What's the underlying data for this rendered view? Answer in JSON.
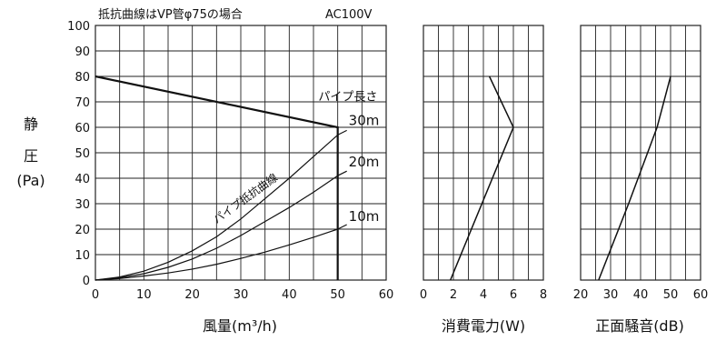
{
  "chart_data": [
    {
      "type": "line",
      "note_left": "抵抗曲線はVP管φ75の場合",
      "note_right": "AC100V",
      "ylabel_lines": [
        "静",
        "圧",
        "(Pa)"
      ],
      "xlabel": "風量(m³/h)",
      "xlim": [
        0,
        60
      ],
      "ylim": [
        0,
        100
      ],
      "xticks": [
        0,
        10,
        20,
        30,
        40,
        50,
        60
      ],
      "yticks": [
        0,
        10,
        20,
        30,
        40,
        50,
        60,
        70,
        80,
        90,
        100
      ],
      "grid": true,
      "fan_curve": {
        "x": [
          0,
          50,
          50
        ],
        "y": [
          80,
          60,
          0
        ]
      },
      "pipe_length_heading": "パイプ長さ",
      "pipe_curve_label": "パイプ抵抗曲線",
      "series": [
        {
          "name": "30m",
          "x": [
            0,
            5,
            10,
            15,
            20,
            25,
            30,
            35,
            40,
            45,
            50
          ],
          "y": [
            0,
            1.2,
            3.5,
            7,
            11.5,
            17,
            24,
            32,
            40,
            48.5,
            57
          ]
        },
        {
          "name": "20m",
          "x": [
            0,
            5,
            10,
            15,
            20,
            25,
            30,
            35,
            40,
            45,
            50
          ],
          "y": [
            0,
            0.9,
            2.5,
            5,
            8.3,
            12.5,
            17.5,
            23,
            28.5,
            34.5,
            41
          ]
        },
        {
          "name": "10m",
          "x": [
            0,
            5,
            10,
            15,
            20,
            25,
            30,
            35,
            40,
            45,
            50
          ],
          "y": [
            0,
            0.6,
            1.6,
            2.8,
            4.3,
            6.2,
            8.5,
            11,
            13.8,
            16.8,
            20
          ]
        }
      ]
    },
    {
      "type": "line",
      "xlabel": "消費電力(W)",
      "xlim": [
        0,
        8
      ],
      "ylim": [
        0,
        100
      ],
      "xticks": [
        0,
        2,
        4,
        6,
        8
      ],
      "grid": true,
      "series": [
        {
          "x": [
            1.8,
            6.0,
            4.4
          ],
          "y": [
            0,
            60,
            80
          ]
        }
      ]
    },
    {
      "type": "line",
      "xlabel": "正面騒音(dB)",
      "xlim": [
        20,
        60
      ],
      "ylim": [
        0,
        100
      ],
      "xticks": [
        20,
        30,
        40,
        50,
        60
      ],
      "grid": true,
      "series": [
        {
          "x": [
            26,
            36,
            45.5,
            50
          ],
          "y": [
            0,
            30,
            60,
            80
          ]
        }
      ]
    }
  ]
}
